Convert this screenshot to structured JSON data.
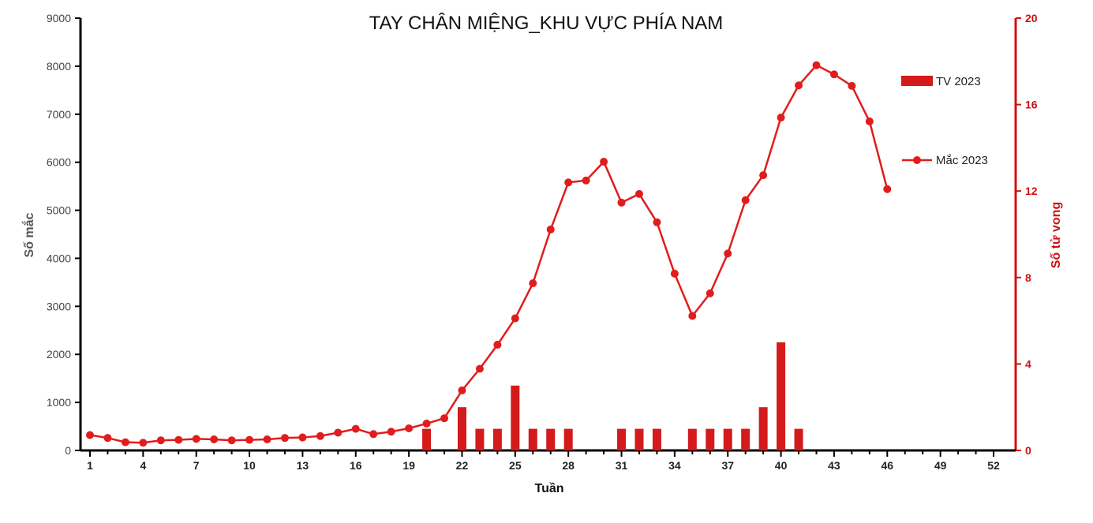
{
  "chart_data": {
    "type": "bar+line",
    "title": "TAY CHÂN MIỆNG_KHU VỰC PHÍA NAM",
    "xlabel": "Tuần",
    "ylabel_left": "Số mắc",
    "ylabel_right": "Số tử vong",
    "ylim_left": [
      0,
      9000
    ],
    "ylim_right": [
      0,
      20
    ],
    "xlim": [
      1,
      52
    ],
    "x_tick_labels": [
      1,
      4,
      7,
      10,
      13,
      16,
      19,
      22,
      25,
      28,
      31,
      34,
      37,
      40,
      43,
      46,
      49,
      52
    ],
    "y_left_ticks": [
      0,
      1000,
      2000,
      3000,
      4000,
      5000,
      6000,
      7000,
      8000,
      9000
    ],
    "y_right_ticks": [
      0,
      4,
      8,
      12,
      16,
      20
    ],
    "grid": false,
    "legend_position": "right",
    "colors": {
      "bars": "#d41a1a",
      "line": "#e11c1c",
      "right_axis": "#cc1111"
    },
    "series": [
      {
        "name": "TV 2023",
        "type": "bar",
        "axis": "right",
        "points": [
          {
            "x": 20,
            "y": 1
          },
          {
            "x": 22,
            "y": 2
          },
          {
            "x": 23,
            "y": 1
          },
          {
            "x": 24,
            "y": 1
          },
          {
            "x": 25,
            "y": 3
          },
          {
            "x": 26,
            "y": 1
          },
          {
            "x": 27,
            "y": 1
          },
          {
            "x": 28,
            "y": 1
          },
          {
            "x": 31,
            "y": 1
          },
          {
            "x": 32,
            "y": 1
          },
          {
            "x": 33,
            "y": 1
          },
          {
            "x": 35,
            "y": 1
          },
          {
            "x": 36,
            "y": 1
          },
          {
            "x": 37,
            "y": 1
          },
          {
            "x": 38,
            "y": 1
          },
          {
            "x": 39,
            "y": 2
          },
          {
            "x": 40,
            "y": 5
          },
          {
            "x": 41,
            "y": 1
          }
        ]
      },
      {
        "name": "Mắc 2023",
        "type": "line",
        "axis": "left",
        "x": [
          1,
          2,
          3,
          4,
          5,
          6,
          7,
          8,
          9,
          10,
          11,
          12,
          13,
          14,
          15,
          16,
          17,
          18,
          19,
          20,
          21,
          22,
          23,
          24,
          25,
          26,
          27,
          28,
          29,
          30,
          31,
          32,
          33,
          34,
          35,
          36,
          37,
          38,
          39,
          40,
          41,
          42,
          43,
          44,
          45,
          46
        ],
        "values": [
          320,
          260,
          170,
          160,
          210,
          220,
          240,
          230,
          210,
          220,
          230,
          260,
          270,
          300,
          370,
          450,
          340,
          390,
          460,
          560,
          670,
          1250,
          1700,
          2200,
          2750,
          3480,
          4600,
          5580,
          5620,
          6010,
          5160,
          5340,
          4750,
          3680,
          2800,
          3270,
          4100,
          5210,
          5730,
          6930,
          7600,
          8020,
          7830,
          7590,
          6850,
          5440
        ]
      }
    ]
  }
}
